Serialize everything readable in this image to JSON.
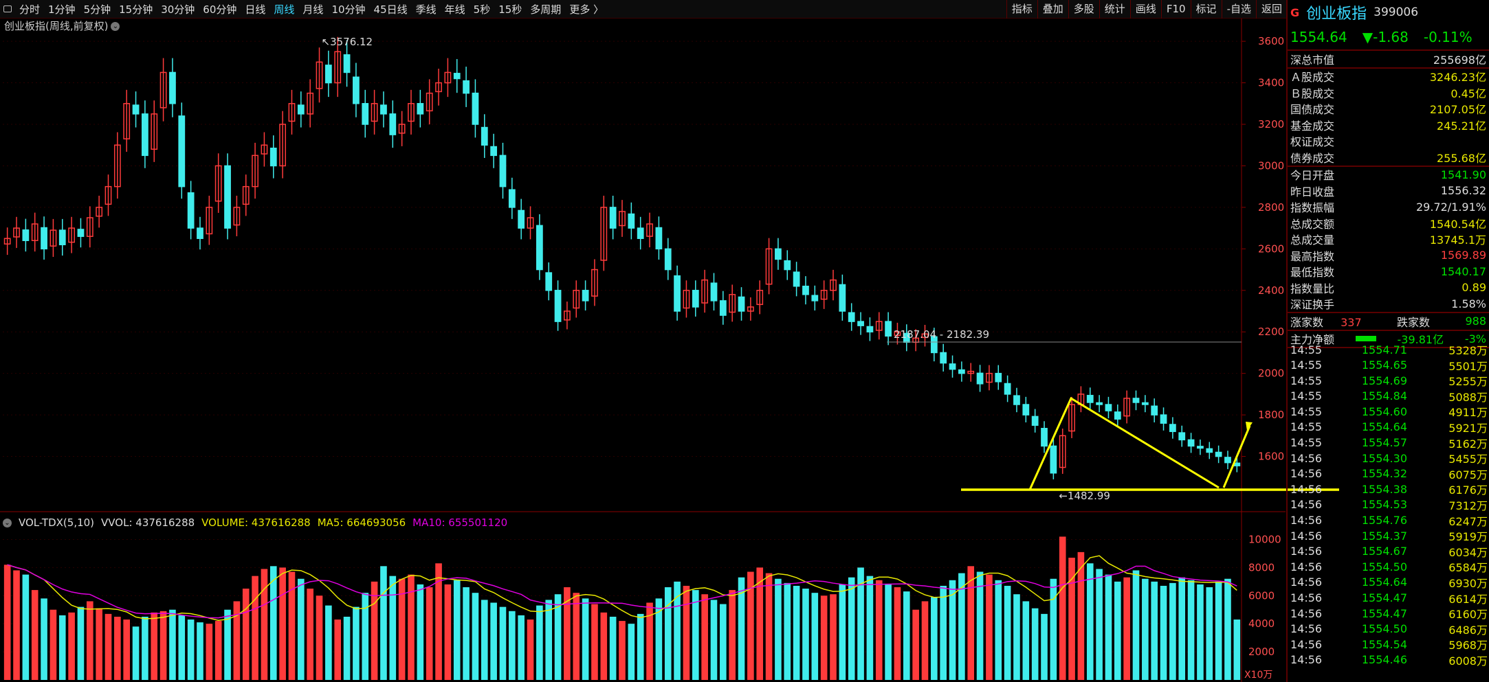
{
  "toolbar": {
    "tabs": [
      "分时",
      "1分钟",
      "5分钟",
      "15分钟",
      "30分钟",
      "60分钟",
      "日线",
      "周线",
      "月线",
      "10分钟",
      "45日线",
      "季线",
      "年线",
      "5秒",
      "15秒",
      "多周期",
      "更多 〉"
    ],
    "active_tab": "周线",
    "right_tools": [
      "指标",
      "叠加",
      "多股",
      "统计",
      "画线",
      "F10",
      "标记",
      "-自选",
      "返回"
    ]
  },
  "chart": {
    "title": "创业板指(周线,前复权)",
    "high_label": "3576.12",
    "low_label": "←1482.99",
    "range_label": "2187.04 - 2182.39",
    "y_ticks": [
      "3600",
      "3400",
      "3200",
      "3000",
      "2800",
      "2600",
      "2400",
      "2200",
      "2000",
      "1800",
      "1600"
    ],
    "vol_ticks": [
      "10000",
      "8000",
      "6000",
      "4000",
      "2000"
    ],
    "vol_unit": "X10万"
  },
  "volume_header": {
    "name": "VOL-TDX(5,10)",
    "vvol": "VVOL: 437616288",
    "volume": "VOLUME: 437616288",
    "ma5": "MA5: 664693056",
    "ma10": "MA10: 655501120"
  },
  "colors": {
    "up": "#ff3b3b",
    "down": "#40ecec",
    "ma5": "#e8e800",
    "ma10": "#e000e0",
    "annot": "#ffff00"
  },
  "side": {
    "flag": "G",
    "name": "创业板指",
    "code": "399006",
    "price": "1554.64",
    "change": "▼-1.68",
    "pct": "-0.11%",
    "cap_label": "深总市值",
    "cap_value": "255698亿",
    "trades": [
      {
        "label": "Ａ股成交",
        "value": "3246.23亿"
      },
      {
        "label": "Ｂ股成交",
        "value": "0.45亿"
      },
      {
        "label": "国债成交",
        "value": "2107.05亿"
      },
      {
        "label": "基金成交",
        "value": "245.21亿"
      },
      {
        "label": "权证成交",
        "value": ""
      },
      {
        "label": "债券成交",
        "value": "255.68亿"
      }
    ],
    "stats": [
      {
        "label": "今日开盘",
        "value": "1541.90",
        "c": "grn"
      },
      {
        "label": "昨日收盘",
        "value": "1556.32",
        "c": "wht"
      },
      {
        "label": "指数振幅",
        "value": "29.72/1.91%",
        "c": "wht"
      },
      {
        "label": "总成交额",
        "value": "1540.54亿",
        "c": "yel"
      },
      {
        "label": "总成交量",
        "value": "13745.1万",
        "c": "yel"
      },
      {
        "label": "最高指数",
        "value": "1569.89",
        "c": "red"
      },
      {
        "label": "最低指数",
        "value": "1540.17",
        "c": "grn"
      },
      {
        "label": "指数量比",
        "value": "0.89",
        "c": "yel"
      },
      {
        "label": "深证换手",
        "value": "1.58%",
        "c": "wht"
      }
    ],
    "up_label": "涨家数",
    "up_count": "337",
    "down_label": "跌家数",
    "down_count": "988",
    "flow_label": "主力净额",
    "flow_value": "-39.81亿",
    "flow_pct": "-3%",
    "ticks": [
      [
        "14:55",
        "1554.71",
        "5328万"
      ],
      [
        "14:55",
        "1554.65",
        "5501万"
      ],
      [
        "14:55",
        "1554.69",
        "5255万"
      ],
      [
        "14:55",
        "1554.84",
        "5088万"
      ],
      [
        "14:55",
        "1554.60",
        "4911万"
      ],
      [
        "14:55",
        "1554.64",
        "5921万"
      ],
      [
        "14:55",
        "1554.57",
        "5162万"
      ],
      [
        "14:56",
        "1554.30",
        "5455万"
      ],
      [
        "14:56",
        "1554.32",
        "6075万"
      ],
      [
        "14:56",
        "1554.38",
        "6176万"
      ],
      [
        "14:56",
        "1554.53",
        "7312万"
      ],
      [
        "14:56",
        "1554.76",
        "6247万"
      ],
      [
        "14:56",
        "1554.37",
        "5919万"
      ],
      [
        "14:56",
        "1554.67",
        "6034万"
      ],
      [
        "14:56",
        "1554.50",
        "6584万"
      ],
      [
        "14:56",
        "1554.64",
        "6930万"
      ],
      [
        "14:56",
        "1554.47",
        "6614万"
      ],
      [
        "14:56",
        "1554.47",
        "6160万"
      ],
      [
        "14:56",
        "1554.50",
        "6486万"
      ],
      [
        "14:56",
        "1554.54",
        "5968万"
      ],
      [
        "14:56",
        "1554.46",
        "6008万"
      ]
    ]
  },
  "chart_data": {
    "type": "candlestick",
    "price_ylim": [
      1400,
      3650
    ],
    "volume_ylim": [
      0,
      11000
    ],
    "closes": [
      2650,
      2700,
      2640,
      2720,
      2600,
      2690,
      2620,
      2700,
      2660,
      2750,
      2800,
      2900,
      3100,
      3300,
      3250,
      3050,
      3250,
      3450,
      3300,
      2900,
      2700,
      2650,
      2800,
      3000,
      2700,
      2800,
      2900,
      3050,
      3100,
      3000,
      3200,
      3300,
      3250,
      3350,
      3500,
      3400,
      3550,
      3450,
      3300,
      3200,
      3300,
      3250,
      3150,
      3200,
      3300,
      3250,
      3350,
      3400,
      3450,
      3420,
      3350,
      3200,
      3100,
      3050,
      2900,
      2800,
      2700,
      2750,
      2500,
      2400,
      2250,
      2300,
      2400,
      2350,
      2500,
      2800,
      2700,
      2780,
      2700,
      2650,
      2720,
      2600,
      2500,
      2300,
      2400,
      2320,
      2450,
      2350,
      2280,
      2380,
      2300,
      2320,
      2400,
      2600,
      2550,
      2500,
      2420,
      2380,
      2350,
      2400,
      2450,
      2300,
      2250,
      2230,
      2200,
      2250,
      2180,
      2200,
      2150,
      2170,
      2190,
      2100,
      2050,
      2020,
      2000,
      2010,
      1950,
      2000,
      1960,
      1900,
      1850,
      1800,
      1750,
      1650,
      1520,
      1700,
      1850,
      1900,
      1860,
      1850,
      1820,
      1780,
      1880,
      1860,
      1850,
      1800,
      1760,
      1720,
      1680,
      1650,
      1640,
      1620,
      1600,
      1570,
      1555
    ],
    "volumes": [
      8200,
      7800,
      7500,
      6400,
      5800,
      5000,
      4600,
      4800,
      5200,
      5600,
      5100,
      4700,
      4500,
      4300,
      3800,
      4500,
      4800,
      4900,
      5000,
      4600,
      4300,
      4100,
      4000,
      4200,
      5000,
      5600,
      6500,
      7400,
      7900,
      8100,
      8000,
      7700,
      7200,
      6500,
      6000,
      5300,
      4300,
      4500,
      5200,
      6200,
      7000,
      8100,
      7400,
      7200,
      7500,
      6800,
      6600,
      8300,
      6800,
      7100,
      6600,
      6200,
      5700,
      5500,
      5200,
      4900,
      4600,
      4300,
      5300,
      5700,
      6100,
      6600,
      6200,
      5800,
      5400,
      4800,
      4500,
      4200,
      4000,
      4700,
      5500,
      5800,
      6600,
      7000,
      6700,
      6400,
      6100,
      5700,
      5400,
      6400,
      7300,
      7700,
      8000,
      7600,
      7200,
      6900,
      6700,
      6500,
      6200,
      6000,
      6100,
      6800,
      7300,
      8000,
      7400,
      7100,
      6800,
      6600,
      6300,
      5000,
      5600,
      5900,
      6700,
      7100,
      7600,
      8100,
      7700,
      7500,
      7100,
      6700,
      6100,
      5600,
      5100,
      4700,
      7200,
      10200,
      8700,
      9100,
      8300,
      7900,
      7500,
      7000,
      7300,
      7800,
      7200,
      7000,
      6700,
      6900,
      7300,
      7100,
      6800,
      6600,
      7000,
      7200,
      4300
    ]
  }
}
